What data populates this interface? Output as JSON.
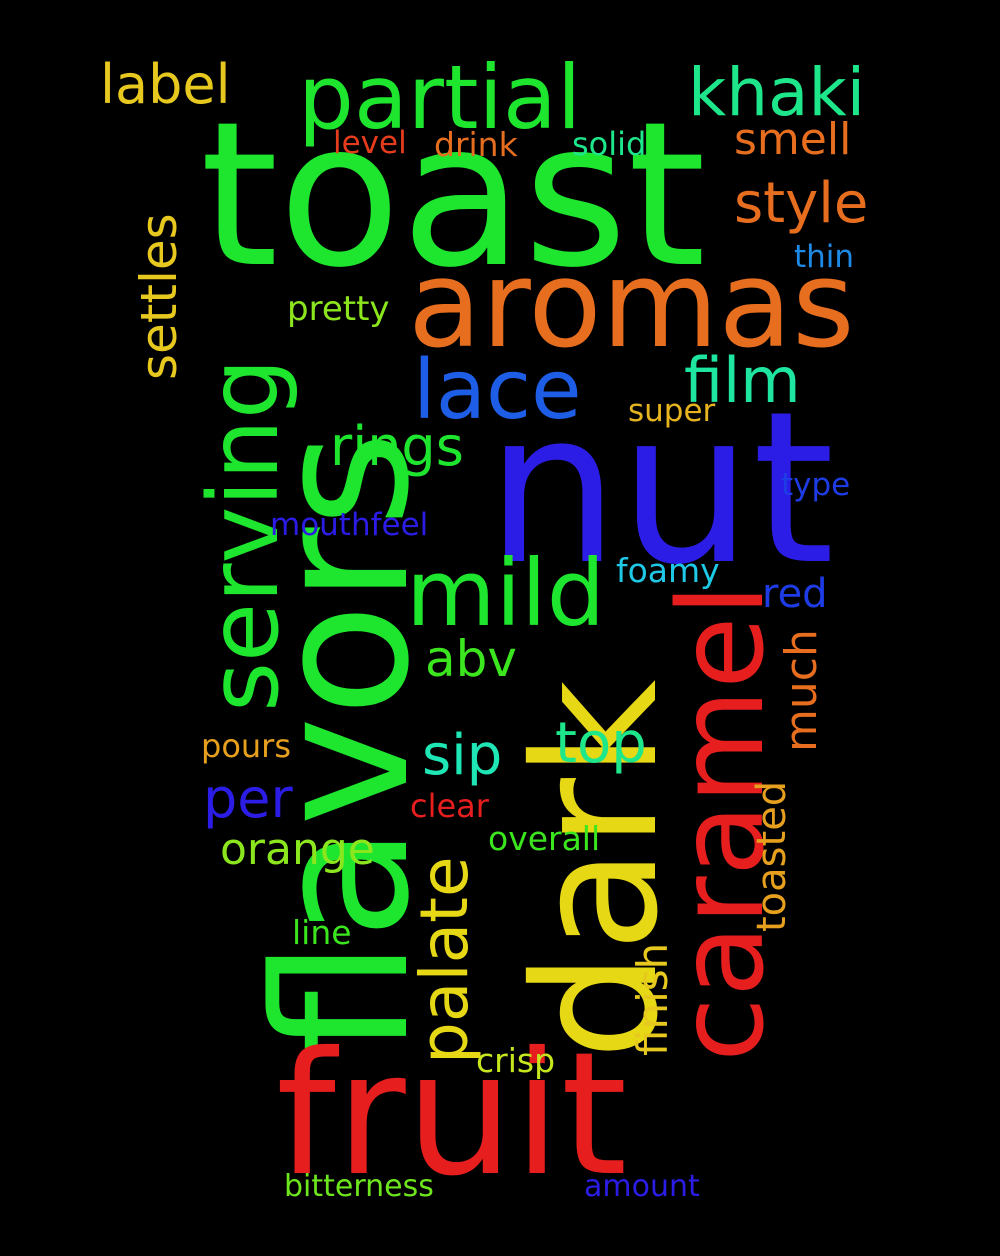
{
  "background": "#000000",
  "words": [
    {
      "key": "toast",
      "text": "toast",
      "color": "#1ee62e",
      "orientation": "horizontal"
    },
    {
      "key": "flavors",
      "text": "flavors",
      "color": "#1ee62e",
      "orientation": "vertical"
    },
    {
      "key": "nut",
      "text": "nut",
      "color": "#2b1de6",
      "orientation": "horizontal"
    },
    {
      "key": "dark",
      "text": "dark",
      "color": "#e6d814",
      "orientation": "vertical"
    },
    {
      "key": "fruit",
      "text": "fruit",
      "color": "#e61e1e",
      "orientation": "horizontal"
    },
    {
      "key": "aromas",
      "text": "aromas",
      "color": "#e66e1e",
      "orientation": "horizontal"
    },
    {
      "key": "caramel",
      "text": "caramel",
      "color": "#e61e1e",
      "orientation": "vertical"
    },
    {
      "key": "serving",
      "text": "serving",
      "color": "#1ee62e",
      "orientation": "vertical"
    },
    {
      "key": "partial",
      "text": "partial",
      "color": "#1ee62e",
      "orientation": "horizontal"
    },
    {
      "key": "mild",
      "text": "mild",
      "color": "#1ee62e",
      "orientation": "horizontal"
    },
    {
      "key": "lace",
      "text": "lace",
      "color": "#1e5ee6",
      "orientation": "horizontal"
    },
    {
      "key": "khaki",
      "text": "khaki",
      "color": "#1ee68a",
      "orientation": "horizontal"
    },
    {
      "key": "palate",
      "text": "palate",
      "color": "#e6d814",
      "orientation": "vertical"
    },
    {
      "key": "film",
      "text": "film",
      "color": "#1ee6a0",
      "orientation": "horizontal"
    },
    {
      "key": "style",
      "text": "style",
      "color": "#e66e1e",
      "orientation": "horizontal"
    },
    {
      "key": "label",
      "text": "label",
      "color": "#e6c81e",
      "orientation": "horizontal"
    },
    {
      "key": "settles",
      "text": "settles",
      "color": "#e6c81e",
      "orientation": "vertical"
    },
    {
      "key": "rings",
      "text": "rings",
      "color": "#1ee62e",
      "orientation": "horizontal"
    },
    {
      "key": "sip",
      "text": "sip",
      "color": "#1ee6b4",
      "orientation": "horizontal"
    },
    {
      "key": "top",
      "text": "top",
      "color": "#1ee68a",
      "orientation": "horizontal"
    },
    {
      "key": "per",
      "text": "per",
      "color": "#2b1de6",
      "orientation": "horizontal"
    },
    {
      "key": "abv",
      "text": "abv",
      "color": "#3ce61e",
      "orientation": "horizontal"
    },
    {
      "key": "smell",
      "text": "smell",
      "color": "#e66e1e",
      "orientation": "horizontal"
    },
    {
      "key": "orange",
      "text": "orange",
      "color": "#8ce61e",
      "orientation": "horizontal"
    },
    {
      "key": "much",
      "text": "much",
      "color": "#e66e1e",
      "orientation": "vertical"
    },
    {
      "key": "finish",
      "text": "finish",
      "color": "#e6c81e",
      "orientation": "vertical"
    },
    {
      "key": "toasted",
      "text": "toasted",
      "color": "#e6a01e",
      "orientation": "vertical"
    },
    {
      "key": "red",
      "text": "red",
      "color": "#1e3ce6",
      "orientation": "horizontal"
    },
    {
      "key": "pretty",
      "text": "pretty",
      "color": "#8ce61e",
      "orientation": "horizontal"
    },
    {
      "key": "foamy",
      "text": "foamy",
      "color": "#1ec8e6",
      "orientation": "horizontal"
    },
    {
      "key": "drink",
      "text": "drink",
      "color": "#e66e1e",
      "orientation": "horizontal"
    },
    {
      "key": "solid",
      "text": "solid",
      "color": "#1ee68a",
      "orientation": "horizontal"
    },
    {
      "key": "level",
      "text": "level",
      "color": "#e63c1e",
      "orientation": "horizontal"
    },
    {
      "key": "thin",
      "text": "thin",
      "color": "#1e8ae6",
      "orientation": "horizontal"
    },
    {
      "key": "super",
      "text": "super",
      "color": "#e6b41e",
      "orientation": "horizontal"
    },
    {
      "key": "type",
      "text": "type",
      "color": "#1e3ce6",
      "orientation": "horizontal"
    },
    {
      "key": "mouthfeel",
      "text": "mouthfeel",
      "color": "#2b1de6",
      "orientation": "horizontal"
    },
    {
      "key": "pours",
      "text": "pours",
      "color": "#e6a01e",
      "orientation": "horizontal"
    },
    {
      "key": "clear",
      "text": "clear",
      "color": "#e61e1e",
      "orientation": "horizontal"
    },
    {
      "key": "overall",
      "text": "overall",
      "color": "#3ce61e",
      "orientation": "horizontal"
    },
    {
      "key": "line",
      "text": "line",
      "color": "#3ce61e",
      "orientation": "horizontal"
    },
    {
      "key": "crisp",
      "text": "crisp",
      "color": "#c8e61e",
      "orientation": "horizontal"
    },
    {
      "key": "bitterness",
      "text": "bitterness",
      "color": "#6ee61e",
      "orientation": "horizontal"
    },
    {
      "key": "amount",
      "text": "amount",
      "color": "#2b1de6",
      "orientation": "horizontal"
    }
  ]
}
